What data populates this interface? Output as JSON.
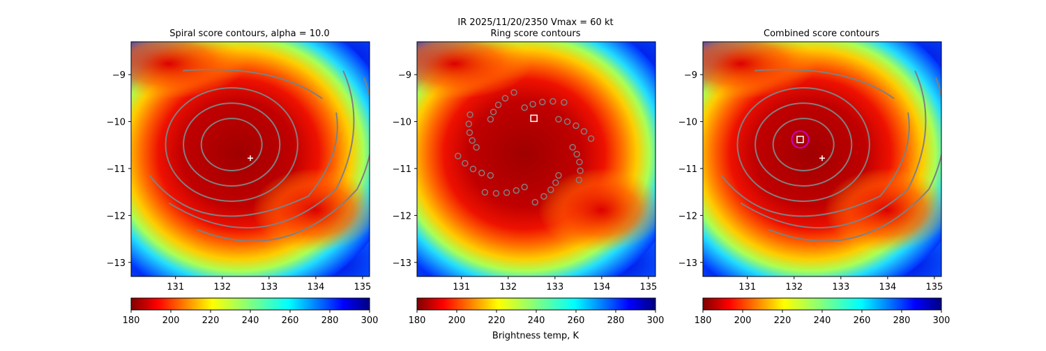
{
  "figure": {
    "suptitle_line1": "IR  2025/11/20/2350    Vmax = 60 kt",
    "colorbar_label": "Brightness temp, K"
  },
  "chart_data": [
    {
      "type": "heatmap",
      "title": "Spiral score contours, alpha = 10.0",
      "xlim": [
        130.05,
        135.15
      ],
      "ylim": [
        -13.3,
        -8.3
      ],
      "x_ticks": [
        131,
        132,
        133,
        134,
        135
      ],
      "y_ticks": [
        -9,
        -10,
        -11,
        -12,
        -13
      ],
      "colorbar": {
        "min": 180,
        "max": 300,
        "ticks": [
          180,
          200,
          220,
          240,
          260,
          280,
          300
        ],
        "colormap": "jet_r"
      },
      "storm_center": [
        132.2,
        -10.4
      ],
      "markers": [
        {
          "symbol": "+",
          "color": "#ffffff",
          "x": 132.6,
          "y": -10.78
        }
      ],
      "contours": {
        "style": "spiral",
        "color": "#808080"
      }
    },
    {
      "type": "heatmap",
      "title": "Ring score contours",
      "xlim": [
        130.05,
        135.15
      ],
      "ylim": [
        -13.3,
        -8.3
      ],
      "x_ticks": [
        131,
        132,
        133,
        134,
        135
      ],
      "y_ticks": [
        -9,
        -10,
        -11,
        -12,
        -13
      ],
      "colorbar": {
        "min": 180,
        "max": 300,
        "ticks": [
          180,
          200,
          220,
          240,
          260,
          280,
          300
        ],
        "colormap": "jet_r"
      },
      "storm_center": [
        132.2,
        -10.4
      ],
      "markers": [
        {
          "symbol": "square",
          "color": "#ffffff",
          "x": 132.55,
          "y": -9.93
        }
      ],
      "contours": {
        "style": "ring",
        "color": "#808080"
      }
    },
    {
      "type": "heatmap",
      "title": "Combined score contours",
      "xlim": [
        130.05,
        135.15
      ],
      "ylim": [
        -13.3,
        -8.3
      ],
      "x_ticks": [
        131,
        132,
        133,
        134,
        135
      ],
      "y_ticks": [
        -9,
        -10,
        -11,
        -12,
        -13
      ],
      "colorbar": {
        "min": 180,
        "max": 300,
        "ticks": [
          180,
          200,
          220,
          240,
          260,
          280,
          300
        ],
        "colormap": "jet_r"
      },
      "storm_center": [
        132.2,
        -10.4
      ],
      "markers": [
        {
          "symbol": "+",
          "color": "#ffffff",
          "x": 132.6,
          "y": -10.78
        },
        {
          "symbol": "square",
          "color": "#ffffff",
          "x": 132.13,
          "y": -10.38
        },
        {
          "symbol": "circle",
          "color": "#cc00cc",
          "x": 132.13,
          "y": -10.38
        }
      ],
      "contours": {
        "style": "spiral",
        "color": "#808080"
      }
    }
  ]
}
